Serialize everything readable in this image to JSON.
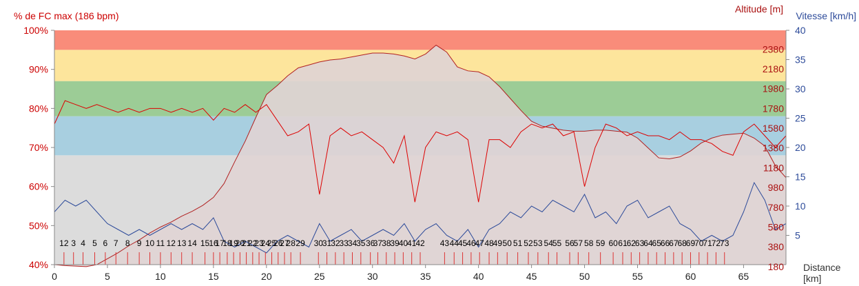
{
  "chart_data": {
    "type": "line",
    "title": "",
    "zone_colors": [
      "#ffffff",
      "#dcdcdc",
      "#a8cfe0",
      "#9ccc96",
      "#fde59c",
      "#f98c7a"
    ],
    "hr_zones": [
      {
        "from": 40,
        "to": 68,
        "color": "#dcdcdc"
      },
      {
        "from": 68,
        "to": 78,
        "color": "#a8cfe0"
      },
      {
        "from": 78,
        "to": 87,
        "color": "#9ccc96"
      },
      {
        "from": 87,
        "to": 95,
        "color": "#fde59c"
      },
      {
        "from": 95,
        "to": 100,
        "color": "#f98c7a"
      }
    ],
    "axes": {
      "left": {
        "label": "% de FC max (186 bpm)",
        "range": [
          40,
          100
        ],
        "ticks": [
          "40%",
          "50%",
          "60%",
          "70%",
          "80%",
          "90%",
          "100%"
        ],
        "color": "#cc0000"
      },
      "right_altitude": {
        "label": "Altitude [m]",
        "range": [
          200,
          2570
        ],
        "ticks": [
          "2380",
          "2180",
          "1980",
          "1780",
          "1580",
          "1380",
          "1180",
          "980",
          "780",
          "580",
          "380",
          "180"
        ],
        "color": "#aa1111"
      },
      "right_speed": {
        "label": "Vitesse [km/h]",
        "range": [
          0,
          40
        ],
        "ticks": [
          "5",
          "10",
          "15",
          "20",
          "25",
          "30",
          "35",
          "40"
        ],
        "color": "#2d4b9a"
      },
      "bottom": {
        "label": "Distance\n[km]",
        "range": [
          0,
          69
        ],
        "ticks": [
          "0",
          "5",
          "10",
          "15",
          "20",
          "25",
          "30",
          "35",
          "40",
          "45",
          "50",
          "55",
          "60",
          "65"
        ]
      }
    },
    "series": [
      {
        "name": "Altitude [m]",
        "color": "#b02020",
        "fill": "#e0d4d4",
        "x": [
          0,
          1,
          2,
          3,
          4,
          5,
          6,
          7,
          8,
          9,
          10,
          11,
          12,
          13,
          14,
          15,
          16,
          17,
          18,
          19,
          20,
          21,
          22,
          23,
          24,
          25,
          26,
          27,
          28,
          29,
          30,
          31,
          32,
          33,
          34,
          35,
          36,
          37,
          38,
          39,
          40,
          41,
          42,
          43,
          44,
          45,
          46,
          47,
          48,
          49,
          50,
          51,
          52,
          53,
          54,
          55,
          56,
          57,
          58,
          59,
          60,
          61,
          62,
          63,
          64,
          65,
          66,
          67,
          68,
          69
        ],
        "y": [
          200,
          190,
          185,
          180,
          200,
          260,
          320,
          390,
          450,
          520,
          580,
          630,
          690,
          740,
          800,
          880,
          1020,
          1240,
          1450,
          1690,
          1920,
          2010,
          2110,
          2190,
          2220,
          2250,
          2270,
          2280,
          2300,
          2320,
          2340,
          2340,
          2330,
          2310,
          2280,
          2330,
          2420,
          2350,
          2200,
          2160,
          2150,
          2100,
          2000,
          1880,
          1760,
          1650,
          1600,
          1580,
          1560,
          1550,
          1550,
          1560,
          1560,
          1550,
          1540,
          1480,
          1380,
          1280,
          1270,
          1290,
          1350,
          1430,
          1480,
          1510,
          1520,
          1530,
          1480,
          1400,
          1200,
          1080
        ]
      },
      {
        "name": "% de FC max (186 bpm)",
        "color": "#dd0000",
        "x": [
          0,
          1,
          2,
          3,
          4,
          5,
          6,
          7,
          8,
          9,
          10,
          11,
          12,
          13,
          14,
          15,
          16,
          17,
          18,
          19,
          20,
          21,
          22,
          23,
          24,
          25,
          26,
          27,
          28,
          29,
          30,
          31,
          32,
          33,
          34,
          35,
          36,
          37,
          38,
          39,
          40,
          41,
          42,
          43,
          44,
          45,
          46,
          47,
          48,
          49,
          50,
          51,
          52,
          53,
          54,
          55,
          56,
          57,
          58,
          59,
          60,
          61,
          62,
          63,
          64,
          65,
          66,
          67,
          68,
          69
        ],
        "y": [
          76,
          82,
          81,
          80,
          81,
          80,
          79,
          80,
          79,
          80,
          80,
          79,
          80,
          79,
          80,
          77,
          80,
          79,
          81,
          79,
          81,
          77,
          73,
          74,
          76,
          58,
          73,
          75,
          73,
          74,
          72,
          70,
          66,
          73,
          56,
          70,
          74,
          73,
          74,
          72,
          56,
          72,
          72,
          70,
          74,
          76,
          75,
          76,
          73,
          74,
          60,
          70,
          76,
          75,
          73,
          74,
          73,
          73,
          72,
          74,
          72,
          72,
          71,
          69,
          68,
          74,
          76,
          73,
          70,
          73
        ]
      },
      {
        "name": "Vitesse [km/h]",
        "color": "#2d4b9a",
        "x": [
          0,
          1,
          2,
          3,
          4,
          5,
          6,
          7,
          8,
          9,
          10,
          11,
          12,
          13,
          14,
          15,
          16,
          17,
          18,
          19,
          20,
          21,
          22,
          23,
          24,
          25,
          26,
          27,
          28,
          29,
          30,
          31,
          32,
          33,
          34,
          35,
          36,
          37,
          38,
          39,
          40,
          41,
          42,
          43,
          44,
          45,
          46,
          47,
          48,
          49,
          50,
          51,
          52,
          53,
          54,
          55,
          56,
          57,
          58,
          59,
          60,
          61,
          62,
          63,
          64,
          65,
          66,
          67,
          68,
          69
        ],
        "y": [
          9,
          11,
          10,
          11,
          9,
          7,
          6,
          5,
          6,
          5,
          6,
          7,
          6,
          7,
          6,
          8,
          4,
          3,
          4,
          3,
          2,
          4,
          5,
          4,
          3,
          7,
          4,
          5,
          6,
          4,
          5,
          6,
          5,
          7,
          4,
          6,
          7,
          5,
          4,
          6,
          3,
          6,
          7,
          9,
          8,
          10,
          9,
          11,
          10,
          9,
          12,
          8,
          9,
          7,
          10,
          11,
          8,
          9,
          10,
          7,
          6,
          4,
          5,
          4,
          5,
          9,
          14,
          11,
          6,
          7
        ]
      }
    ],
    "lap_labels": [
      "12",
      "3",
      "4",
      "5",
      "6",
      "7",
      "8",
      "9",
      "10",
      "11",
      "12",
      "13",
      "14",
      "15",
      "16",
      "17",
      "18",
      "19",
      "20",
      "21",
      "22",
      "23",
      "24",
      "25",
      "26",
      "27",
      "28",
      "29",
      "30",
      "31",
      "32",
      "33",
      "34",
      "35",
      "36",
      "37",
      "38",
      "39",
      "40",
      "41",
      "42",
      "43",
      "44",
      "45",
      "46",
      "47",
      "48",
      "49",
      "50",
      "51",
      "52",
      "53",
      "54",
      "55",
      "56",
      "57",
      "58",
      "59",
      "60",
      "61",
      "62",
      "63",
      "64",
      "65",
      "66",
      "67",
      "68",
      "69",
      "70",
      "71",
      "72",
      "73"
    ],
    "lap_positions_km": [
      0.9,
      1.8,
      2.7,
      3.8,
      4.8,
      5.8,
      6.9,
      8,
      9,
      10,
      11,
      12,
      13,
      14.2,
      15,
      15.6,
      16.3,
      16.9,
      17.5,
      18.1,
      18.7,
      19.3,
      19.9,
      20.5,
      21.1,
      21.7,
      22.3,
      23.2,
      24.9,
      25.7,
      26.5,
      27.3,
      28.1,
      28.9,
      29.8,
      30.5,
      31.3,
      32.1,
      32.9,
      33.7,
      34.5,
      36.8,
      37.7,
      38.5,
      39.3,
      40.1,
      41,
      41.8,
      42.7,
      43.7,
      44.7,
      45.6,
      46.6,
      47.4,
      48.6,
      49.4,
      50.4,
      51.5,
      52.7,
      53.6,
      54.4,
      55.2,
      56,
      56.8,
      57.6,
      58.4,
      59.2,
      60,
      60.8,
      61.6,
      62.4,
      63.2
    ]
  }
}
